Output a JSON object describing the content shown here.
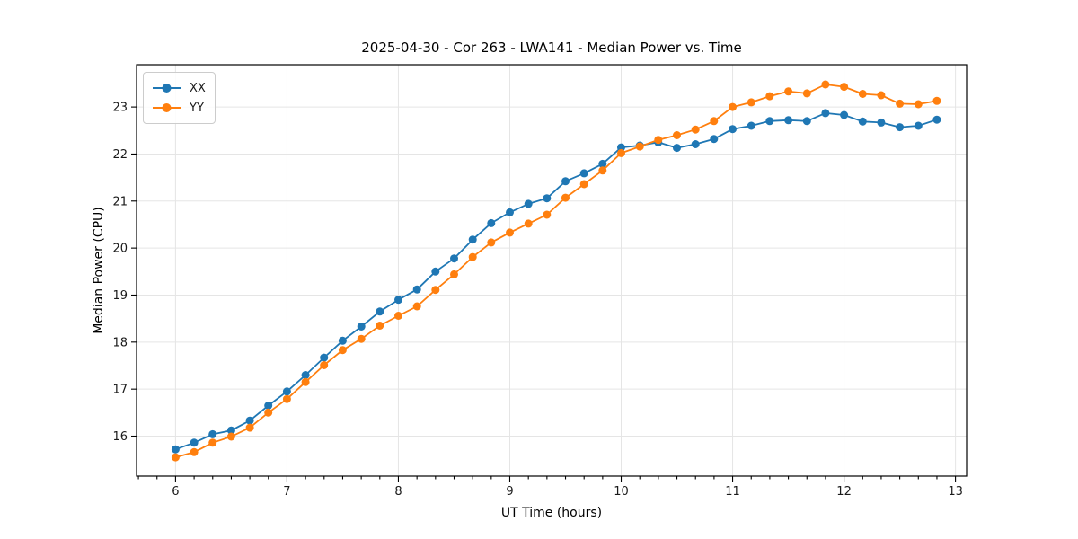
{
  "figure": {
    "title": "2025-04-30 - Cor 263 - LWA141 - Median Power vs. Time",
    "xlabel": "UT Time (hours)",
    "ylabel": "Median Power (CPU)"
  },
  "legend": {
    "position": "upper left",
    "items": [
      {
        "label": "XX",
        "color": "#1f77b4"
      },
      {
        "label": "YY",
        "color": "#ff7f0e"
      }
    ]
  },
  "chart_data": {
    "type": "line",
    "title": "2025-04-30 - Cor 263 - LWA141 - Median Power vs. Time",
    "xlabel": "UT Time (hours)",
    "ylabel": "Median Power (CPU)",
    "grid": true,
    "legend_position": "upper left",
    "marker": "circle",
    "xlim": [
      5.65,
      13.1
    ],
    "ylim": [
      15.15,
      23.9
    ],
    "x_ticks": [
      6,
      7,
      8,
      9,
      10,
      11,
      12,
      13
    ],
    "y_ticks": [
      16,
      17,
      18,
      19,
      20,
      21,
      22,
      23
    ],
    "x_minor_step": 0.16667,
    "x": [
      6.0,
      6.167,
      6.333,
      6.5,
      6.667,
      6.833,
      7.0,
      7.167,
      7.333,
      7.5,
      7.667,
      7.833,
      8.0,
      8.167,
      8.333,
      8.5,
      8.667,
      8.833,
      9.0,
      9.167,
      9.333,
      9.5,
      9.667,
      9.833,
      10.0,
      10.167,
      10.333,
      10.5,
      10.667,
      10.833,
      11.0,
      11.167,
      11.333,
      11.5,
      11.667,
      11.833,
      12.0,
      12.167,
      12.333,
      12.5,
      12.667,
      12.833
    ],
    "series": [
      {
        "name": "XX",
        "color": "#1f77b4",
        "values": [
          15.72,
          15.86,
          16.04,
          16.12,
          16.33,
          16.65,
          16.95,
          17.3,
          17.67,
          18.03,
          18.33,
          18.65,
          18.9,
          19.12,
          19.5,
          19.78,
          20.18,
          20.53,
          20.76,
          20.94,
          21.06,
          21.42,
          21.59,
          21.79,
          22.14,
          22.18,
          22.25,
          22.13,
          22.21,
          22.32,
          22.53,
          22.6,
          22.7,
          22.72,
          22.7,
          22.87,
          22.83,
          22.69,
          22.67,
          22.57,
          22.6,
          22.73
        ]
      },
      {
        "name": "YY",
        "color": "#ff7f0e",
        "values": [
          15.55,
          15.66,
          15.86,
          15.99,
          16.18,
          16.5,
          16.79,
          17.15,
          17.51,
          17.83,
          18.07,
          18.35,
          18.56,
          18.76,
          19.11,
          19.44,
          19.81,
          20.12,
          20.33,
          20.52,
          20.71,
          21.07,
          21.36,
          21.65,
          22.02,
          22.16,
          22.3,
          22.4,
          22.52,
          22.7,
          23.0,
          23.1,
          23.23,
          23.33,
          23.29,
          23.48,
          23.43,
          23.28,
          23.25,
          23.07,
          23.06,
          23.13
        ]
      }
    ]
  }
}
